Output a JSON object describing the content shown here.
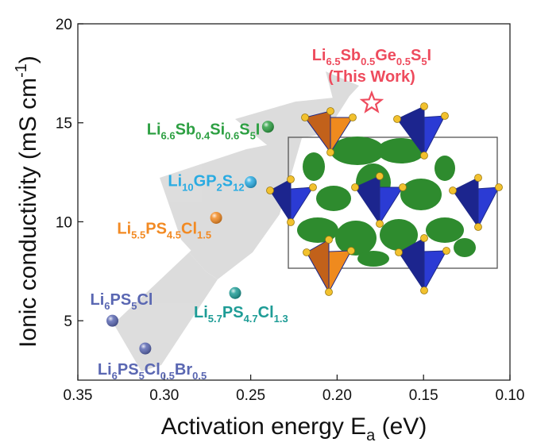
{
  "chart_data": {
    "type": "scatter",
    "xlabel": "Activation energy E",
    "xlabel_sub": "a",
    "xlabel_unit": " (eV)",
    "ylabel": "Ionic conductivity (mS cm",
    "ylabel_sup": "-1",
    "ylabel_close": ")",
    "xlim": [
      0.35,
      0.1
    ],
    "ylim": [
      2,
      20
    ],
    "x_axis_reversed": true,
    "xticks": [
      0.35,
      0.3,
      0.25,
      0.2,
      0.15,
      0.1
    ],
    "xtick_labels": [
      "0.35",
      "0.30",
      "0.25",
      "0.20",
      "0.15",
      "0.10"
    ],
    "yticks": [
      5,
      10,
      15,
      20
    ],
    "ytick_labels": [
      "5",
      "10",
      "15",
      "20"
    ],
    "grid": false,
    "points": [
      {
        "id": "li6ps5cl",
        "x": 0.33,
        "y": 5.0,
        "color": "#5a67b2",
        "marker": "sphere",
        "label": [
          [
            "Li",
            ""
          ],
          [
            "6",
            "sub"
          ],
          [
            "PS",
            ""
          ],
          [
            "5",
            "sub"
          ],
          [
            "Cl",
            ""
          ]
        ],
        "label_color": "#5a67b2"
      },
      {
        "id": "li6ps5clbr",
        "x": 0.311,
        "y": 3.6,
        "color": "#5a67b2",
        "marker": "sphere",
        "label": [
          [
            "Li",
            ""
          ],
          [
            "6",
            "sub"
          ],
          [
            "PS",
            ""
          ],
          [
            "5",
            "sub"
          ],
          [
            "Cl",
            ""
          ],
          [
            "0.5",
            "sub"
          ],
          [
            "Br",
            ""
          ],
          [
            "0.5",
            "sub"
          ]
        ],
        "label_color": "#5a67b2"
      },
      {
        "id": "li55ps45cl15",
        "x": 0.27,
        "y": 10.2,
        "color": "#f28a23",
        "marker": "sphere",
        "label": [
          [
            "Li",
            ""
          ],
          [
            "5.5",
            "sub"
          ],
          [
            "PS",
            ""
          ],
          [
            "4.5",
            "sub"
          ],
          [
            "Cl",
            ""
          ],
          [
            "1.5",
            "sub"
          ]
        ],
        "label_color": "#f28a23"
      },
      {
        "id": "li57ps47cl13",
        "x": 0.259,
        "y": 6.4,
        "color": "#1e9c96",
        "marker": "sphere",
        "label": [
          [
            "Li",
            ""
          ],
          [
            "5.7",
            "sub"
          ],
          [
            "PS",
            ""
          ],
          [
            "4.7",
            "sub"
          ],
          [
            "Cl",
            ""
          ],
          [
            "1.3",
            "sub"
          ]
        ],
        "label_color": "#1e9c96"
      },
      {
        "id": "li10gp2s12",
        "x": 0.25,
        "y": 12.0,
        "color": "#29abe2",
        "marker": "sphere",
        "label": [
          [
            "Li",
            ""
          ],
          [
            "10",
            "sub"
          ],
          [
            "GP",
            ""
          ],
          [
            "2",
            "sub"
          ],
          [
            "S",
            ""
          ],
          [
            "12",
            "sub"
          ]
        ],
        "label_color": "#29abe2"
      },
      {
        "id": "li66sb04si06s5i",
        "x": 0.24,
        "y": 14.8,
        "color": "#2ea043",
        "marker": "sphere",
        "label": [
          [
            "Li",
            ""
          ],
          [
            "6.6",
            "sub"
          ],
          [
            "Sb",
            ""
          ],
          [
            "0.4",
            "sub"
          ],
          [
            "Si",
            ""
          ],
          [
            "0.6",
            "sub"
          ],
          [
            "S",
            ""
          ],
          [
            "5",
            "sub"
          ],
          [
            "I",
            ""
          ]
        ],
        "label_color": "#2ea043"
      },
      {
        "id": "li65sb05ge05s5i",
        "x": 0.18,
        "y": 16.0,
        "color": "#ee4b5d",
        "marker": "star",
        "label": [
          [
            "Li",
            ""
          ],
          [
            "6.5",
            "sub"
          ],
          [
            "Sb",
            ""
          ],
          [
            "0.5",
            "sub"
          ],
          [
            "Ge",
            ""
          ],
          [
            "0.5",
            "sub"
          ],
          [
            "S",
            ""
          ],
          [
            "5",
            "sub"
          ],
          [
            "I",
            ""
          ]
        ],
        "label_line2": "(This Work)",
        "label_color": "#ee4b5d"
      }
    ]
  }
}
